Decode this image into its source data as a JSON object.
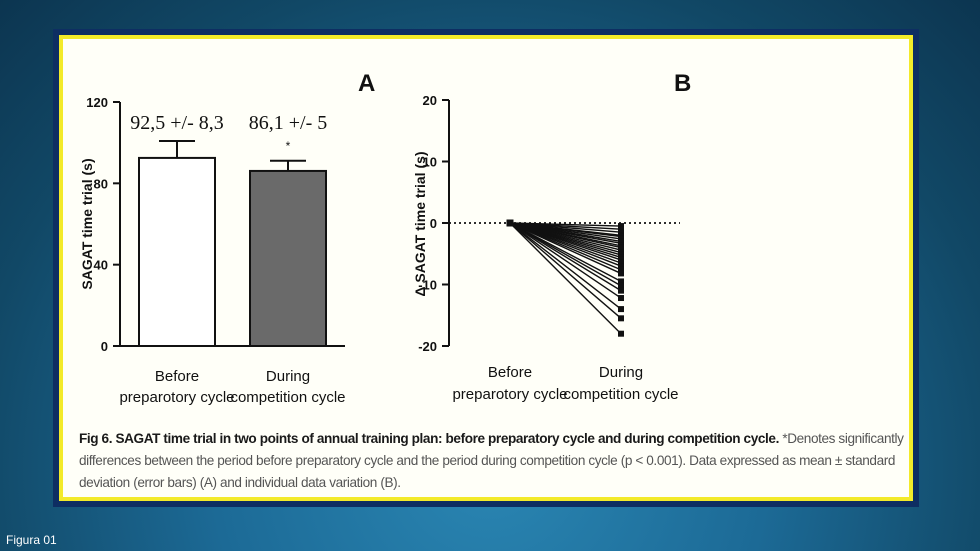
{
  "slide_label": "Figura 01",
  "caption": {
    "bold": "Fig 6. SAGAT time trial in two points of annual training plan: before preparatory cycle and during competition cycle.",
    "normal": " *Denotes significantly differences between the period before preparatory cycle and the period during competition cycle (p < 0.001). Data expressed as mean ± standard deviation (error bars) (A) and individual data variation (B)."
  },
  "chart_data": [
    {
      "panel": "A",
      "type": "bar",
      "ylabel": "SAGAT time trial (s)",
      "ylim": [
        0,
        120
      ],
      "yticks": [
        "0",
        "40",
        "80",
        "120"
      ],
      "categories": [
        {
          "line1": "Before",
          "line2": "preparotory cycle"
        },
        {
          "line1": "During",
          "line2": "competition cycle"
        }
      ],
      "values": [
        92.5,
        86.1
      ],
      "errors": [
        8.3,
        5
      ],
      "value_labels": [
        "92,5 +/- 8,3",
        "86,1 +/- 5"
      ],
      "significance_marks": [
        "",
        "*"
      ],
      "bar_colors": [
        "#ffffff",
        "#6a6a6a"
      ]
    },
    {
      "panel": "B",
      "type": "line",
      "ylabel": "Δ SAGAT time trial (s)",
      "ylim": [
        -20,
        20
      ],
      "yticks": [
        "-20",
        "-10",
        "0",
        "10",
        "20"
      ],
      "reference_line": 0,
      "categories": [
        {
          "line1": "Before",
          "line2": "preparotory cycle"
        },
        {
          "line1": "During",
          "line2": "competition cycle"
        }
      ],
      "before_value": 0,
      "during_values": [
        -0.5,
        -1.0,
        -1.5,
        -2.0,
        -2.2,
        -2.6,
        -3.0,
        -3.3,
        -3.7,
        -4.0,
        -4.4,
        -4.8,
        -5.2,
        -5.6,
        -6.0,
        -6.5,
        -7.0,
        -7.6,
        -8.2,
        -9.5,
        -10.2,
        -11.0,
        -12.2,
        -14.0,
        -15.5,
        -18.0
      ]
    }
  ]
}
